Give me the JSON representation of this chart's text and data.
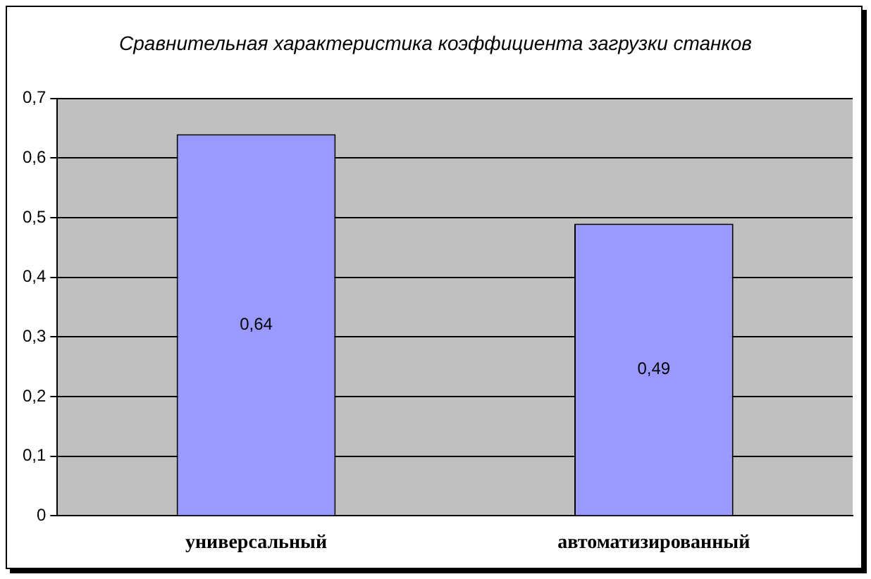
{
  "chart_data": {
    "type": "bar",
    "title": "Сравнительная характеристика коэффициента загрузки станков",
    "categories": [
      "универсальный",
      "автоматизированный"
    ],
    "values": [
      0.64,
      0.49
    ],
    "color": "#9999ff",
    "value_labels": [
      "0,64",
      "0,49"
    ],
    "ylim": [
      0,
      0.7
    ],
    "yticks": [
      {
        "value": 0,
        "label": "0"
      },
      {
        "value": 0.1,
        "label": "0,1"
      },
      {
        "value": 0.2,
        "label": "0,2"
      },
      {
        "value": 0.3,
        "label": "0,3"
      },
      {
        "value": 0.4,
        "label": "0,4"
      },
      {
        "value": 0.5,
        "label": "0,5"
      },
      {
        "value": 0.6,
        "label": "0,6"
      },
      {
        "value": 0.7,
        "label": "0,7"
      }
    ],
    "grid": "y",
    "legend": false
  }
}
